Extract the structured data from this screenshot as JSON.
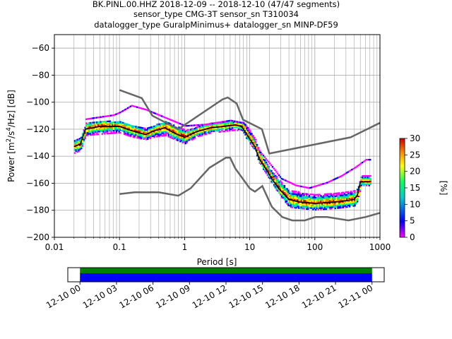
{
  "title": {
    "line1": "BK.PINL.00.HHZ   2018-12-09 -- 2018-12-10  (47/47 segments)",
    "line2": "sensor_type CMG-3T sensor_sn T310034",
    "line3": "datalogger_type GuralpMinimus+ datalogger_sn MINP-DF59"
  },
  "chart_data": [
    {
      "type": "heatmap",
      "xscale": "log",
      "xlabel": "Period [s]",
      "ylabel": "Power [m²/s⁴/Hz] [dB]",
      "ylabel_parts": [
        "Power [m",
        "2",
        "/s",
        "4",
        "/Hz] [dB]"
      ],
      "xlim": [
        0.01,
        1000
      ],
      "ylim": [
        -200,
        -50
      ],
      "grid": true,
      "x_ticks": [
        0.01,
        0.1,
        1,
        10,
        100,
        1000
      ],
      "x_tick_labels": [
        "0.01",
        "0.1",
        "1",
        "10",
        "100",
        "1000"
      ],
      "y_ticks": [
        -200,
        -180,
        -160,
        -140,
        -120,
        -100,
        -80,
        -60
      ],
      "y_tick_labels": [
        "−200",
        "−180",
        "−160",
        "−140",
        "−120",
        "−100",
        "−80",
        "−60"
      ],
      "colorbar": {
        "label": "[%]",
        "range": [
          0,
          30
        ],
        "ticks": [
          0,
          5,
          10,
          15,
          20,
          25,
          30
        ],
        "tick_labels": [
          "0",
          "5",
          "10",
          "15",
          "20",
          "25",
          "30"
        ],
        "colors": [
          "#ff00ff",
          "#0000ff",
          "#00cccc",
          "#00ff66",
          "#ffff00",
          "#ff8800",
          "#cc0000"
        ]
      },
      "noise_model_high": {
        "name": "NHNM",
        "points": [
          [
            0.1,
            -91
          ],
          [
            0.22,
            -97
          ],
          [
            0.32,
            -110
          ],
          [
            0.8,
            -120
          ],
          [
            3.8,
            -98
          ],
          [
            4.6,
            -96.5
          ],
          [
            6.3,
            -101
          ],
          [
            7.9,
            -113
          ],
          [
            15.4,
            -120
          ],
          [
            20,
            -138
          ],
          [
            354.8,
            -126
          ],
          [
            10000,
            -91.5
          ]
        ]
      },
      "noise_model_low": {
        "name": "NLNM",
        "points": [
          [
            0.1,
            -168
          ],
          [
            0.17,
            -166.7
          ],
          [
            0.4,
            -166.7
          ],
          [
            0.8,
            -169.2
          ],
          [
            1.24,
            -163.7
          ],
          [
            2.4,
            -148.6
          ],
          [
            4.3,
            -141.1
          ],
          [
            5,
            -141.1
          ],
          [
            6,
            -149
          ],
          [
            10,
            -163.8
          ],
          [
            12,
            -166.2
          ],
          [
            15.6,
            -162.1
          ],
          [
            21.9,
            -177.5
          ],
          [
            31.6,
            -185
          ],
          [
            45,
            -187.5
          ],
          [
            70,
            -187.5
          ],
          [
            101,
            -185
          ],
          [
            154,
            -185
          ],
          [
            328,
            -187.5
          ],
          [
            600,
            -185
          ],
          [
            10000,
            -168
          ]
        ]
      },
      "mode_curve": {
        "name": "mode",
        "points": [
          [
            0.02,
            -133
          ],
          [
            0.025,
            -131
          ],
          [
            0.03,
            -120
          ],
          [
            0.05,
            -118
          ],
          [
            0.1,
            -118
          ],
          [
            0.15,
            -121
          ],
          [
            0.25,
            -124
          ],
          [
            0.35,
            -121
          ],
          [
            0.5,
            -119
          ],
          [
            0.7,
            -123
          ],
          [
            1.0,
            -126
          ],
          [
            1.5,
            -122
          ],
          [
            2.5,
            -119
          ],
          [
            4.0,
            -118
          ],
          [
            6.0,
            -117
          ],
          [
            7.5,
            -118
          ],
          [
            9.0,
            -124
          ],
          [
            12.0,
            -133
          ],
          [
            14.0,
            -142
          ],
          [
            18.0,
            -150
          ],
          [
            22.0,
            -157
          ],
          [
            28.0,
            -164
          ],
          [
            40.0,
            -172
          ],
          [
            60.0,
            -174
          ],
          [
            100.0,
            -175
          ],
          [
            200.0,
            -174
          ],
          [
            300.0,
            -173
          ],
          [
            400.0,
            -172
          ],
          [
            450.0,
            -169
          ],
          [
            500.0,
            -159
          ],
          [
            700.0,
            -159
          ]
        ]
      },
      "density_band": {
        "name": "probability density",
        "points": [
          [
            0.02,
            -138,
            -129
          ],
          [
            0.025,
            -136,
            -126
          ],
          [
            0.03,
            -125,
            -116
          ],
          [
            0.05,
            -124,
            -114
          ],
          [
            0.1,
            -123,
            -115
          ],
          [
            0.15,
            -126,
            -117
          ],
          [
            0.25,
            -128,
            -120
          ],
          [
            0.35,
            -126,
            -117
          ],
          [
            0.5,
            -125,
            -115
          ],
          [
            0.7,
            -128,
            -117
          ],
          [
            1.0,
            -131,
            -121
          ],
          [
            1.5,
            -126,
            -119
          ],
          [
            2.5,
            -123,
            -116
          ],
          [
            4.0,
            -122,
            -115
          ],
          [
            6.0,
            -121,
            -115
          ],
          [
            7.5,
            -122,
            -115
          ],
          [
            9.0,
            -128,
            -119
          ],
          [
            12.0,
            -137,
            -128
          ],
          [
            14.0,
            -146,
            -137
          ],
          [
            18.0,
            -154,
            -146
          ],
          [
            22.0,
            -161,
            -152
          ],
          [
            28.0,
            -169,
            -158
          ],
          [
            40.0,
            -178,
            -166
          ],
          [
            60.0,
            -179,
            -167
          ],
          [
            100.0,
            -180,
            -169
          ],
          [
            200.0,
            -179,
            -168
          ],
          [
            300.0,
            -178,
            -167
          ],
          [
            400.0,
            -177,
            -166
          ],
          [
            450.0,
            -173,
            -164
          ],
          [
            500.0,
            -162,
            -155
          ],
          [
            700.0,
            -162,
            -155
          ]
        ]
      },
      "outlier_upper": {
        "name": "outliers",
        "points": [
          [
            0.03,
            -113
          ],
          [
            0.08,
            -110
          ],
          [
            0.1,
            -108
          ],
          [
            0.15,
            -103
          ],
          [
            0.25,
            -106
          ],
          [
            0.5,
            -112
          ],
          [
            1.0,
            -118
          ],
          [
            2.0,
            -117
          ],
          [
            5.0,
            -114
          ],
          [
            8.0,
            -116
          ],
          [
            10.0,
            -122
          ],
          [
            14.0,
            -137
          ],
          [
            20.0,
            -146
          ],
          [
            30.0,
            -157
          ],
          [
            50.0,
            -162
          ],
          [
            80.0,
            -164
          ],
          [
            150.0,
            -160
          ],
          [
            250.0,
            -155
          ],
          [
            400.0,
            -149
          ],
          [
            600.0,
            -143
          ],
          [
            700.0,
            -143
          ]
        ]
      }
    },
    {
      "type": "timeline",
      "xlim": [
        "2018-12-09 23:00",
        "2018-12-11 01:00"
      ],
      "x_tick_labels": [
        "12-10 00",
        "12-10 03",
        "12-10 06",
        "12-10 09",
        "12-10 12",
        "12-10 15",
        "12-10 18",
        "12-10 21",
        "12-11 00"
      ],
      "segments": [
        {
          "name": "data coverage",
          "start": "2018-12-10 00:00",
          "end": "2018-12-11 00:00",
          "color": "#008000"
        },
        {
          "name": "segments used",
          "start": "2018-12-10 00:00",
          "end": "2018-12-11 00:00",
          "color": "#0000ff"
        }
      ]
    }
  ]
}
